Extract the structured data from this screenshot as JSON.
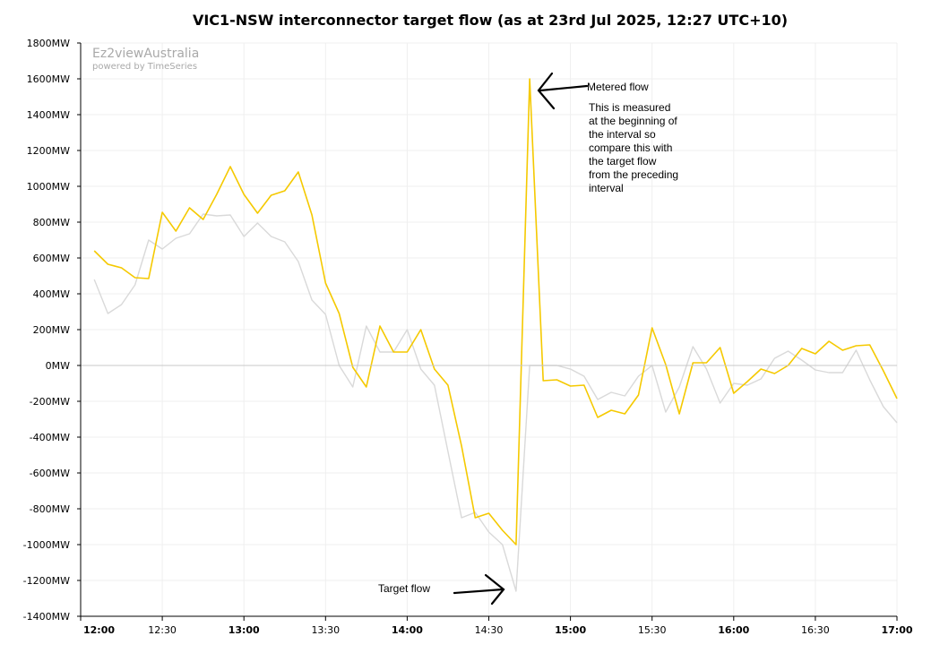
{
  "chart_data": {
    "type": "line",
    "title": "VIC1-NSW interconnector target flow (as at 23rd Jul 2025, 12:27 UTC+10)",
    "y_unit": "MW",
    "ylim": [
      -1400,
      1800
    ],
    "y_ticks": [
      "1800MW",
      "1600MW",
      "1400MW",
      "1200MW",
      "1000MW",
      "800MW",
      "600MW",
      "400MW",
      "200MW",
      "0MW",
      "-200MW",
      "-400MW",
      "-600MW",
      "-800MW",
      "-1000MW",
      "-1200MW",
      "-1400MW"
    ],
    "x_ticks": [
      {
        "label": "12:00",
        "bold": true
      },
      {
        "label": "12:30",
        "bold": false
      },
      {
        "label": "13:00",
        "bold": true
      },
      {
        "label": "13:30",
        "bold": false
      },
      {
        "label": "14:00",
        "bold": true
      },
      {
        "label": "14:30",
        "bold": false
      },
      {
        "label": "15:00",
        "bold": true
      },
      {
        "label": "15:30",
        "bold": false
      },
      {
        "label": "16:00",
        "bold": true
      },
      {
        "label": "16:30",
        "bold": false
      },
      {
        "label": "17:00",
        "bold": true
      }
    ],
    "xlim": [
      "12:00",
      "17:00"
    ],
    "interval_minutes": 5,
    "grid": true,
    "series": [
      {
        "color": "#d9d9d9",
        "values": [
          480,
          290,
          340,
          450,
          700,
          650,
          710,
          735,
          845,
          835,
          840,
          720,
          795,
          720,
          690,
          580,
          365,
          285,
          0,
          -120,
          220,
          75,
          75,
          200,
          -20,
          -110,
          -480,
          -850,
          -820,
          -930,
          -1000,
          -1260,
          0,
          0,
          0,
          -20,
          -60,
          -190,
          -150,
          -170,
          -60,
          0,
          -260,
          -120,
          105,
          -20,
          -210,
          -100,
          -110,
          -75,
          40,
          80,
          30,
          -25,
          -40,
          -40,
          85,
          -80,
          -230,
          -320
        ]
      },
      {
        "color": "#f5c900",
        "values": [
          640,
          565,
          545,
          490,
          485,
          855,
          750,
          880,
          815,
          955,
          1110,
          955,
          850,
          950,
          975,
          1080,
          840,
          460,
          290,
          -10,
          -120,
          220,
          75,
          75,
          200,
          -20,
          -110,
          -450,
          -850,
          -825,
          -920,
          -1000,
          1600,
          -85,
          -80,
          -115,
          -110,
          -290,
          -250,
          -270,
          -165,
          210,
          5,
          -270,
          15,
          15,
          100,
          -155,
          -90,
          -20,
          -45,
          0,
          95,
          65,
          135,
          85,
          110,
          115,
          -30,
          -185
        ]
      }
    ],
    "annotations": [
      {
        "text": "Metered flow"
      },
      {
        "lines": [
          "This is measured",
          "at the beginning of",
          "the interval so",
          "compare this with",
          "the target flow",
          "from the preceding",
          "interval"
        ]
      },
      {
        "text": "Target flow"
      }
    ],
    "watermark": {
      "brand": "Ez2viewAustralia",
      "sub": "powered by TimeSeries"
    }
  }
}
